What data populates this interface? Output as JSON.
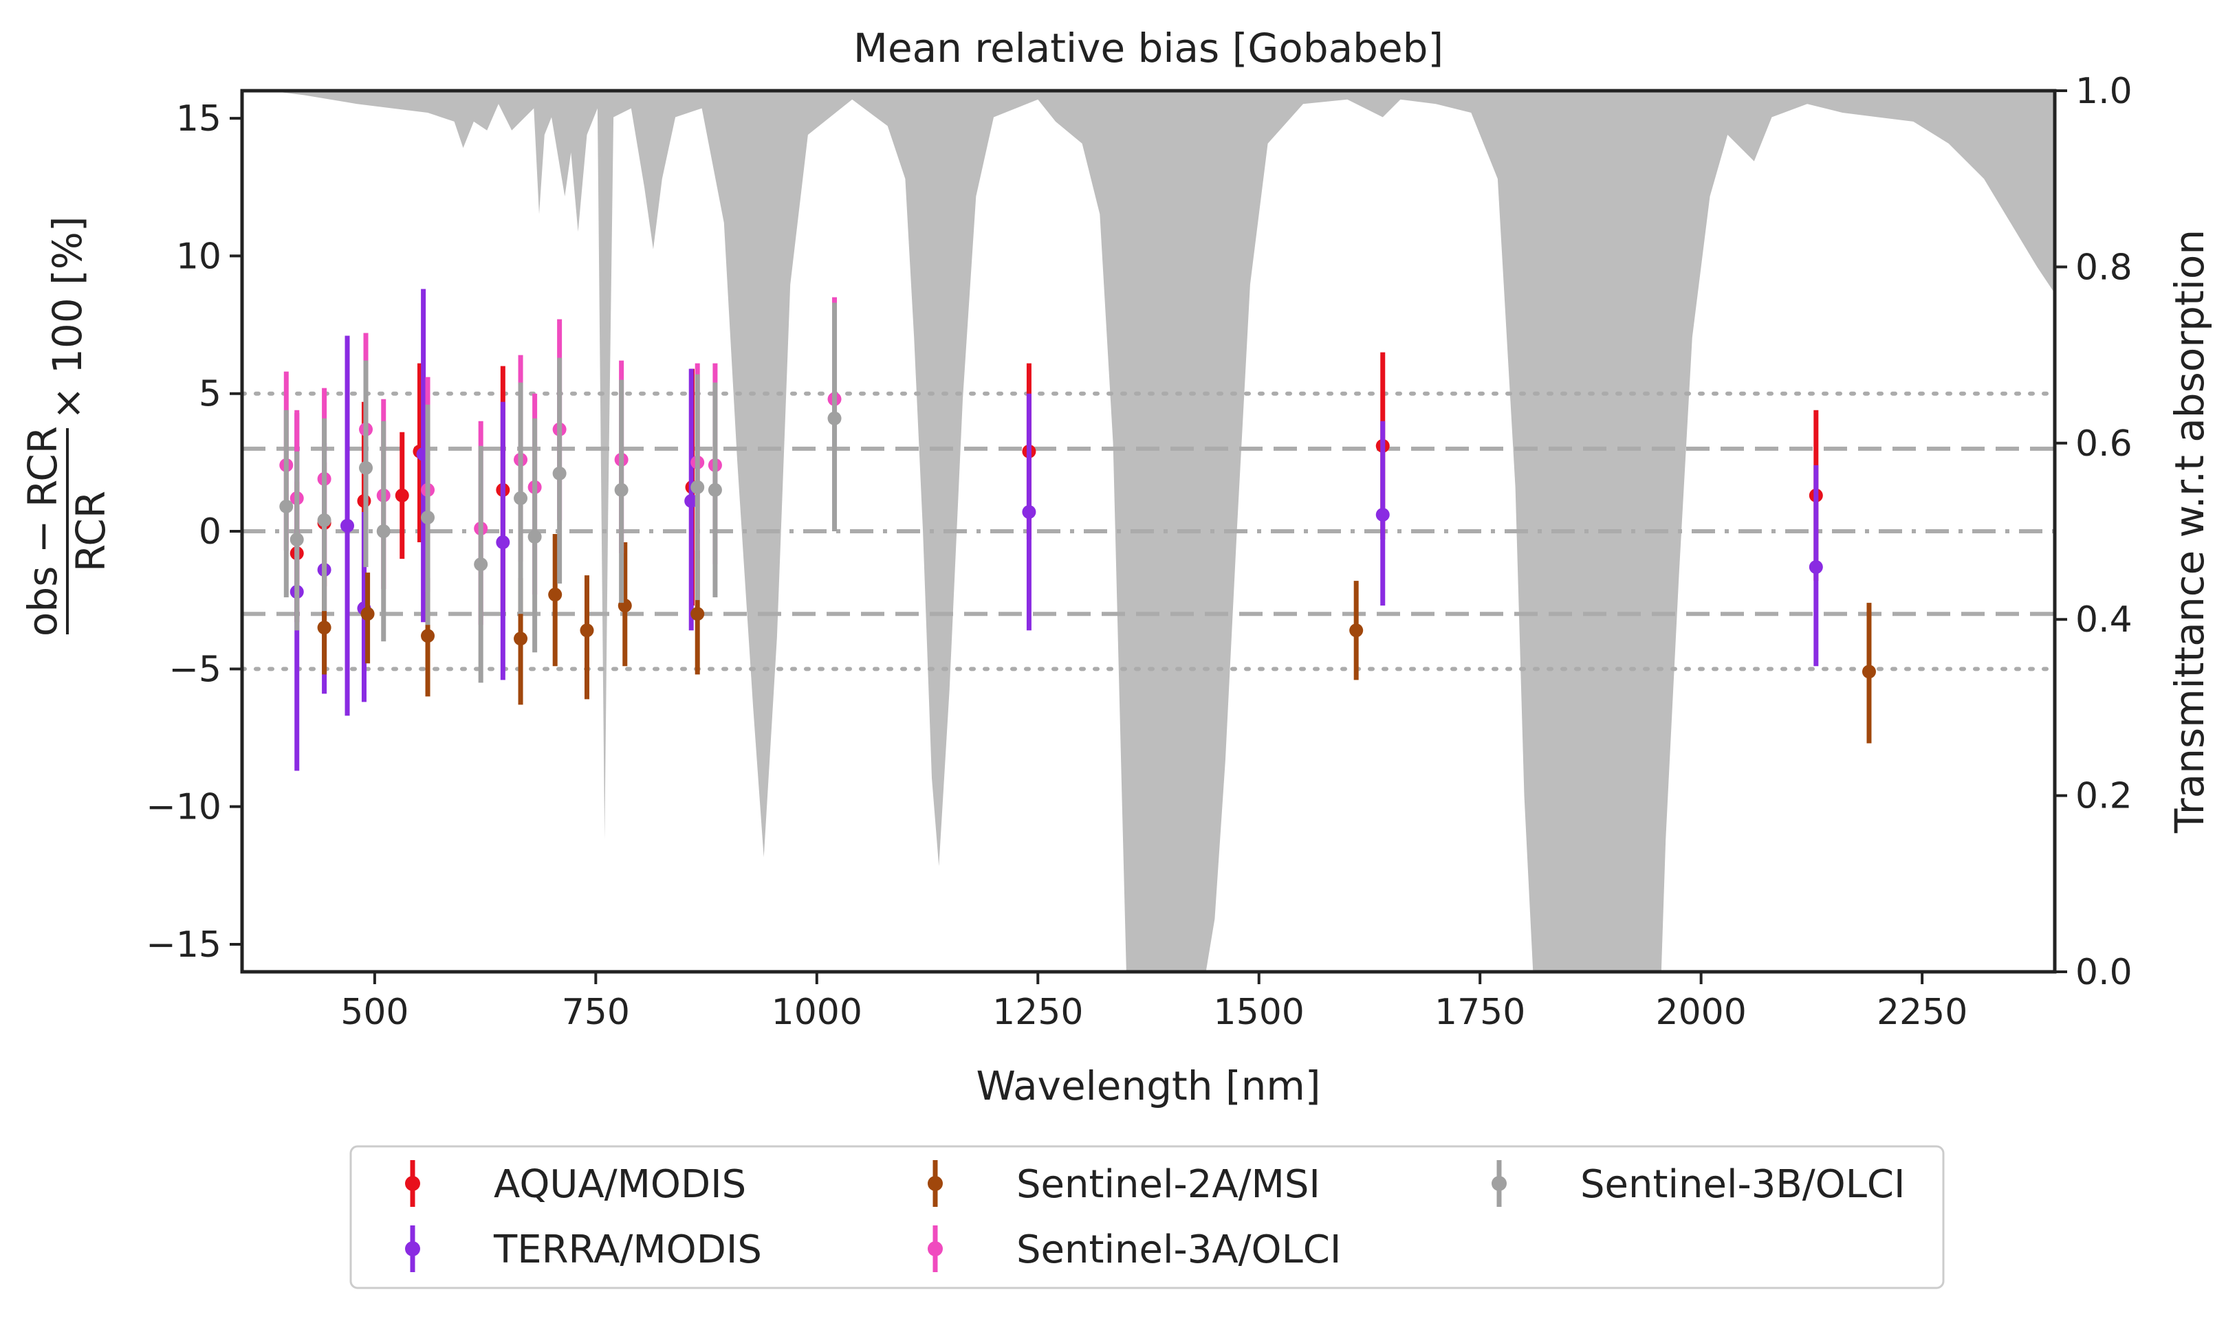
{
  "chart_data": {
    "type": "scatter",
    "title": "Mean relative bias [Gobabeb]",
    "xlabel": "Wavelength [nm]",
    "ylabel": {
      "numerator": "obs − RCR",
      "denominator": "RCR",
      "suffix": "× 100 [%]"
    },
    "y2label": "Transmittance w.r.t absorption",
    "xlim": [
      350,
      2400
    ],
    "ylim": [
      -16,
      16
    ],
    "y2lim": [
      0,
      1
    ],
    "xticks": [
      500,
      750,
      1000,
      1250,
      1500,
      1750,
      2000,
      2250
    ],
    "xtick_labels": [
      "500",
      "750",
      "1000",
      "1250",
      "1500",
      "1750",
      "2000",
      "2250"
    ],
    "yticks": [
      15,
      10,
      5,
      0,
      -5,
      -10,
      -15
    ],
    "ytick_labels": [
      "15",
      "10",
      "5",
      "0",
      "−5",
      "−10",
      "−15"
    ],
    "y2ticks": [
      1.0,
      0.8,
      0.6,
      0.4,
      0.2,
      0.0
    ],
    "y2tick_labels": [
      "1.0",
      "0.8",
      "0.6",
      "0.4",
      "0.2",
      "0.0"
    ],
    "reference_lines": [
      {
        "y": 5,
        "style": "dotted"
      },
      {
        "y": -5,
        "style": "dotted"
      },
      {
        "y": 3,
        "style": "dashed"
      },
      {
        "y": -3,
        "style": "dashed"
      },
      {
        "y": 0,
        "style": "dashdot"
      }
    ],
    "legend_position": "bottom, outside",
    "series": [
      {
        "name": "AQUA/MODIS",
        "color": "#e8101c",
        "points": [
          {
            "x": 412,
            "y": -0.8,
            "lo": -3.3,
            "hi": 1.8
          },
          {
            "x": 443,
            "y": 0.3,
            "lo": -2.0,
            "hi": 2.5
          },
          {
            "x": 488,
            "y": 1.1,
            "lo": -1.5,
            "hi": 4.7
          },
          {
            "x": 531,
            "y": 1.3,
            "lo": -1.0,
            "hi": 3.6
          },
          {
            "x": 551,
            "y": 2.9,
            "lo": -0.4,
            "hi": 6.1
          },
          {
            "x": 645,
            "y": 1.5,
            "lo": -2.9,
            "hi": 6.0
          },
          {
            "x": 859,
            "y": 1.6,
            "lo": -2.7,
            "hi": 5.9
          },
          {
            "x": 1240,
            "y": 2.9,
            "lo": -0.3,
            "hi": 6.1
          },
          {
            "x": 1640,
            "y": 3.1,
            "lo": -0.3,
            "hi": 6.5
          },
          {
            "x": 2130,
            "y": 1.3,
            "lo": -1.8,
            "hi": 4.4
          }
        ]
      },
      {
        "name": "TERRA/MODIS",
        "color": "#8a2be2",
        "points": [
          {
            "x": 412,
            "y": -2.2,
            "lo": -8.7,
            "hi": 4.3
          },
          {
            "x": 443,
            "y": -1.4,
            "lo": -5.9,
            "hi": 3.2
          },
          {
            "x": 469,
            "y": 0.2,
            "lo": -6.7,
            "hi": 7.1
          },
          {
            "x": 488,
            "y": -2.8,
            "lo": -6.2,
            "hi": 0.7
          },
          {
            "x": 555,
            "y": 2.8,
            "lo": -3.3,
            "hi": 8.8
          },
          {
            "x": 645,
            "y": -0.4,
            "lo": -5.4,
            "hi": 4.7
          },
          {
            "x": 858,
            "y": 1.1,
            "lo": -3.6,
            "hi": 5.9
          },
          {
            "x": 1240,
            "y": 0.7,
            "lo": -3.6,
            "hi": 5.0
          },
          {
            "x": 1640,
            "y": 0.6,
            "lo": -2.7,
            "hi": 4.0
          },
          {
            "x": 2130,
            "y": -1.3,
            "lo": -4.9,
            "hi": 2.4
          }
        ]
      },
      {
        "name": "Sentinel-2A/MSI",
        "color": "#a0470c",
        "points": [
          {
            "x": 443,
            "y": -3.5,
            "lo": -5.2,
            "hi": -1.6
          },
          {
            "x": 492,
            "y": -3.0,
            "lo": -4.8,
            "hi": -1.5
          },
          {
            "x": 560,
            "y": -3.8,
            "lo": -6.0,
            "hi": -1.7
          },
          {
            "x": 665,
            "y": -3.9,
            "lo": -6.3,
            "hi": -1.7
          },
          {
            "x": 704,
            "y": -2.3,
            "lo": -4.9,
            "hi": -0.1
          },
          {
            "x": 740,
            "y": -3.6,
            "lo": -6.1,
            "hi": -1.6
          },
          {
            "x": 783,
            "y": -2.7,
            "lo": -4.9,
            "hi": -0.4
          },
          {
            "x": 865,
            "y": -3.0,
            "lo": -5.2,
            "hi": -0.7
          },
          {
            "x": 1610,
            "y": -3.6,
            "lo": -5.4,
            "hi": -1.8
          },
          {
            "x": 2190,
            "y": -5.1,
            "lo": -7.7,
            "hi": -2.6
          }
        ]
      },
      {
        "name": "Sentinel-3A/OLCI",
        "color": "#f04bbf",
        "points": [
          {
            "x": 400,
            "y": 2.4,
            "lo": -0.7,
            "hi": 5.8
          },
          {
            "x": 412,
            "y": 1.2,
            "lo": -1.8,
            "hi": 4.4
          },
          {
            "x": 443,
            "y": 1.9,
            "lo": -1.3,
            "hi": 5.2
          },
          {
            "x": 490,
            "y": 3.7,
            "lo": 0.4,
            "hi": 7.2
          },
          {
            "x": 510,
            "y": 1.3,
            "lo": -2.1,
            "hi": 4.8
          },
          {
            "x": 560,
            "y": 1.5,
            "lo": -2.2,
            "hi": 5.6
          },
          {
            "x": 620,
            "y": 0.1,
            "lo": -3.4,
            "hi": 4.0
          },
          {
            "x": 665,
            "y": 2.6,
            "lo": -1.1,
            "hi": 6.4
          },
          {
            "x": 681,
            "y": 1.6,
            "lo": -2.3,
            "hi": 5.0
          },
          {
            "x": 709,
            "y": 3.7,
            "lo": 0.4,
            "hi": 7.7
          },
          {
            "x": 779,
            "y": 2.6,
            "lo": -0.8,
            "hi": 6.2
          },
          {
            "x": 865,
            "y": 2.5,
            "lo": -1.0,
            "hi": 6.1
          },
          {
            "x": 885,
            "y": 2.4,
            "lo": -1.2,
            "hi": 6.1
          },
          {
            "x": 1020,
            "y": 4.8,
            "lo": 1.0,
            "hi": 8.5
          }
        ]
      },
      {
        "name": "Sentinel-3B/OLCI",
        "color": "#a0a0a0",
        "points": [
          {
            "x": 400,
            "y": 0.9,
            "lo": -2.4,
            "hi": 4.4
          },
          {
            "x": 412,
            "y": -0.3,
            "lo": -3.6,
            "hi": 2.9
          },
          {
            "x": 443,
            "y": 0.4,
            "lo": -2.9,
            "hi": 4.1
          },
          {
            "x": 490,
            "y": 2.3,
            "lo": -1.3,
            "hi": 6.2
          },
          {
            "x": 510,
            "y": 0.0,
            "lo": -4.0,
            "hi": 4.0
          },
          {
            "x": 560,
            "y": 0.5,
            "lo": -3.4,
            "hi": 4.6
          },
          {
            "x": 620,
            "y": -1.2,
            "lo": -5.5,
            "hi": 3.1
          },
          {
            "x": 665,
            "y": 1.2,
            "lo": -3.0,
            "hi": 5.4
          },
          {
            "x": 681,
            "y": -0.2,
            "lo": -4.4,
            "hi": 4.1
          },
          {
            "x": 709,
            "y": 2.1,
            "lo": -1.9,
            "hi": 6.3
          },
          {
            "x": 779,
            "y": 1.5,
            "lo": -2.6,
            "hi": 5.5
          },
          {
            "x": 865,
            "y": 1.6,
            "lo": -2.5,
            "hi": 5.7
          },
          {
            "x": 885,
            "y": 1.5,
            "lo": -2.4,
            "hi": 5.4
          },
          {
            "x": 1020,
            "y": 4.1,
            "lo": 0.0,
            "hi": 8.3
          }
        ]
      }
    ],
    "transmittance": {
      "color": "#bdbdbd",
      "points": [
        [
          350,
          1.0
        ],
        [
          380,
          1.0
        ],
        [
          420,
          0.995
        ],
        [
          480,
          0.985
        ],
        [
          520,
          0.98
        ],
        [
          560,
          0.975
        ],
        [
          590,
          0.965
        ],
        [
          600,
          0.935
        ],
        [
          612,
          0.965
        ],
        [
          627,
          0.955
        ],
        [
          640,
          0.985
        ],
        [
          655,
          0.955
        ],
        [
          680,
          0.98
        ],
        [
          686,
          0.86
        ],
        [
          692,
          0.95
        ],
        [
          700,
          0.97
        ],
        [
          715,
          0.88
        ],
        [
          722,
          0.93
        ],
        [
          730,
          0.84
        ],
        [
          740,
          0.95
        ],
        [
          752,
          0.98
        ],
        [
          760,
          0.15
        ],
        [
          764,
          0.52
        ],
        [
          770,
          0.97
        ],
        [
          790,
          0.98
        ],
        [
          805,
          0.89
        ],
        [
          815,
          0.82
        ],
        [
          825,
          0.9
        ],
        [
          840,
          0.97
        ],
        [
          870,
          0.98
        ],
        [
          895,
          0.85
        ],
        [
          910,
          0.58
        ],
        [
          928,
          0.3
        ],
        [
          940,
          0.13
        ],
        [
          955,
          0.38
        ],
        [
          970,
          0.78
        ],
        [
          990,
          0.95
        ],
        [
          1040,
          0.99
        ],
        [
          1080,
          0.96
        ],
        [
          1100,
          0.9
        ],
        [
          1110,
          0.72
        ],
        [
          1120,
          0.5
        ],
        [
          1130,
          0.22
        ],
        [
          1138,
          0.12
        ],
        [
          1150,
          0.32
        ],
        [
          1165,
          0.65
        ],
        [
          1180,
          0.88
        ],
        [
          1200,
          0.97
        ],
        [
          1250,
          0.99
        ],
        [
          1270,
          0.965
        ],
        [
          1300,
          0.94
        ],
        [
          1320,
          0.86
        ],
        [
          1335,
          0.6
        ],
        [
          1345,
          0.2
        ],
        [
          1350,
          0.0
        ],
        [
          1440,
          0.0
        ],
        [
          1450,
          0.06
        ],
        [
          1462,
          0.24
        ],
        [
          1475,
          0.5
        ],
        [
          1490,
          0.78
        ],
        [
          1510,
          0.94
        ],
        [
          1550,
          0.985
        ],
        [
          1600,
          0.99
        ],
        [
          1640,
          0.97
        ],
        [
          1660,
          0.99
        ],
        [
          1700,
          0.985
        ],
        [
          1740,
          0.975
        ],
        [
          1770,
          0.9
        ],
        [
          1790,
          0.55
        ],
        [
          1800,
          0.2
        ],
        [
          1810,
          0.0
        ],
        [
          1955,
          0.0
        ],
        [
          1960,
          0.15
        ],
        [
          1975,
          0.45
        ],
        [
          1990,
          0.72
        ],
        [
          2010,
          0.88
        ],
        [
          2030,
          0.95
        ],
        [
          2060,
          0.92
        ],
        [
          2080,
          0.97
        ],
        [
          2120,
          0.985
        ],
        [
          2160,
          0.975
        ],
        [
          2200,
          0.97
        ],
        [
          2240,
          0.965
        ],
        [
          2280,
          0.94
        ],
        [
          2320,
          0.9
        ],
        [
          2350,
          0.85
        ],
        [
          2380,
          0.8
        ],
        [
          2400,
          0.77
        ]
      ]
    }
  }
}
